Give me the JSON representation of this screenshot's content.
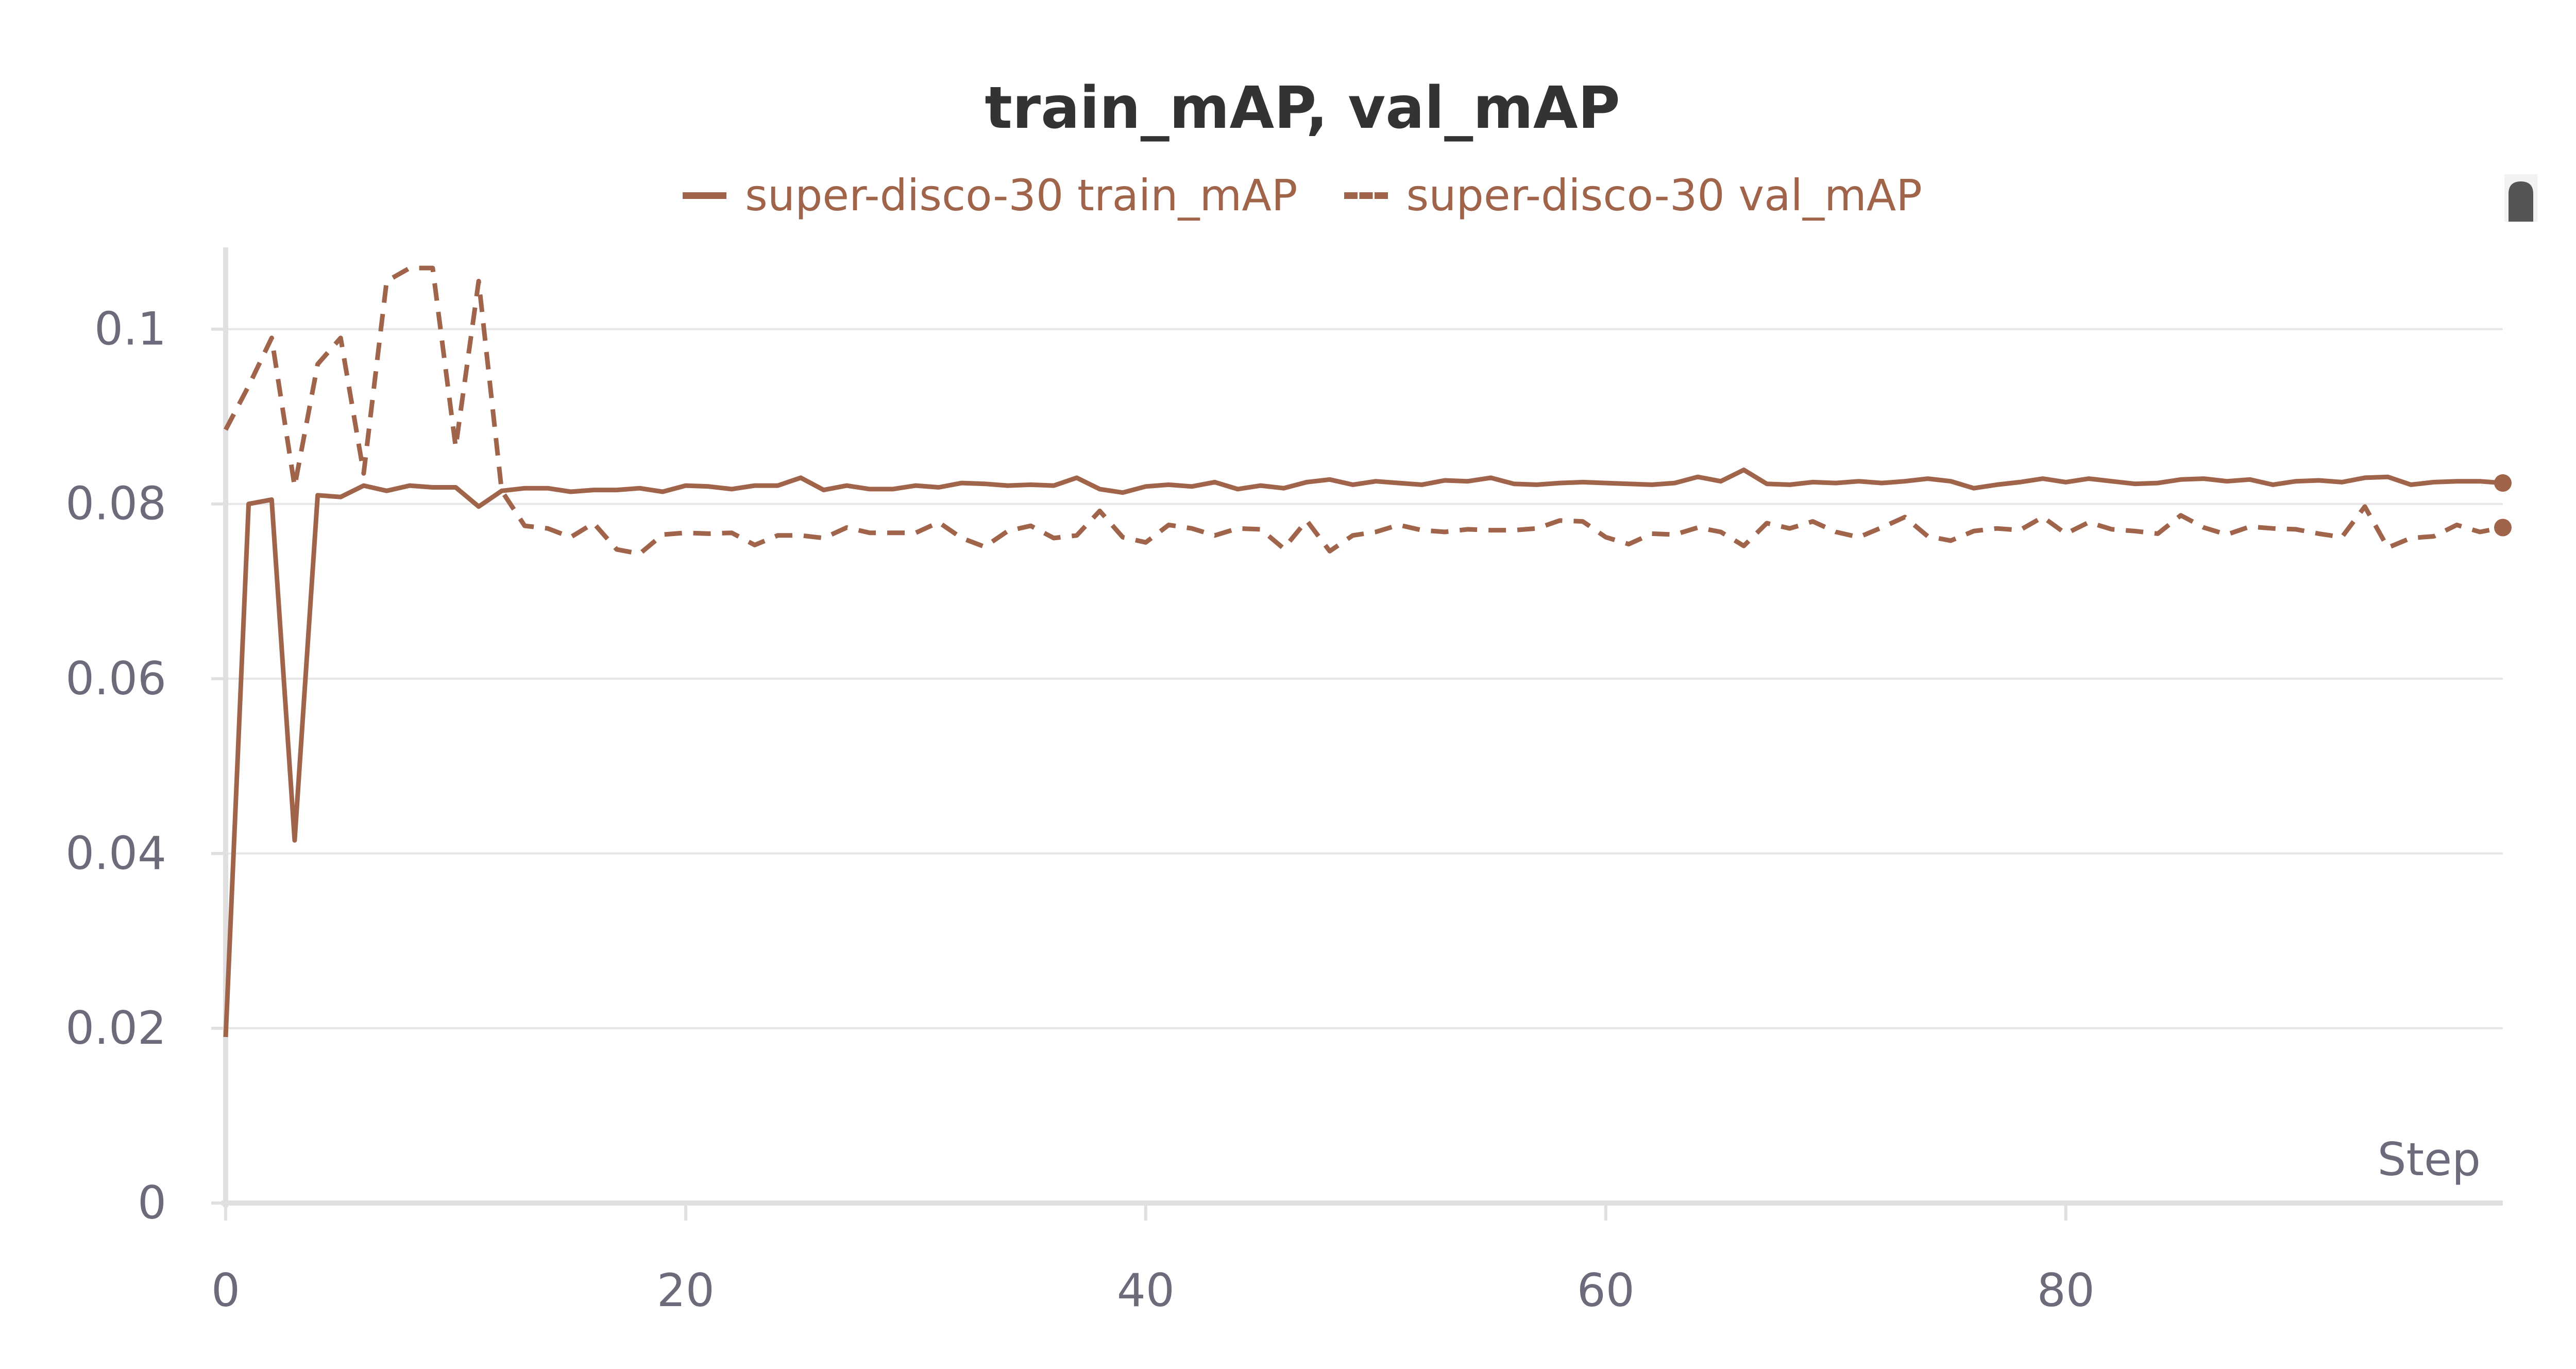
{
  "chart_data": {
    "type": "line",
    "title": "train_mAP, val_mAP",
    "xlabel": "Step",
    "ylabel": "",
    "xlim": [
      0,
      99
    ],
    "ylim": [
      0,
      0.107
    ],
    "x_ticks": [
      0,
      20,
      40,
      60,
      80
    ],
    "x_tick_labels": [
      "0",
      "20",
      "40",
      "60",
      "80"
    ],
    "y_ticks": [
      0,
      0.02,
      0.04,
      0.06,
      0.08,
      0.1
    ],
    "y_tick_labels": [
      "0",
      "0.02",
      "0.04",
      "0.06",
      "0.08",
      "0.1"
    ],
    "grid": true,
    "legend_position": "top-center",
    "color": "#a0644a",
    "series": [
      {
        "name": "super-disco-30 train_mAP",
        "style": "solid",
        "x_start": 0,
        "values": [
          0.019,
          0.08,
          0.0805,
          0.0415,
          0.081,
          0.0808,
          0.0821,
          0.0815,
          0.0821,
          0.0819,
          0.0819,
          0.0797,
          0.0815,
          0.0818,
          0.0818,
          0.0814,
          0.0816,
          0.0816,
          0.0818,
          0.0814,
          0.0821,
          0.082,
          0.0817,
          0.0821,
          0.0821,
          0.083,
          0.0816,
          0.0821,
          0.0817,
          0.0817,
          0.0821,
          0.0819,
          0.0824,
          0.0823,
          0.0821,
          0.0822,
          0.0821,
          0.083,
          0.0817,
          0.0813,
          0.082,
          0.0822,
          0.082,
          0.0825,
          0.0817,
          0.0821,
          0.0818,
          0.0825,
          0.0828,
          0.0822,
          0.0826,
          0.0824,
          0.0822,
          0.0827,
          0.0826,
          0.083,
          0.0823,
          0.0822,
          0.0824,
          0.0825,
          0.0824,
          0.0823,
          0.0822,
          0.0824,
          0.0831,
          0.0826,
          0.0839,
          0.0823,
          0.0822,
          0.0825,
          0.0824,
          0.0826,
          0.0824,
          0.0826,
          0.0829,
          0.0826,
          0.0818,
          0.0822,
          0.0825,
          0.0829,
          0.0825,
          0.0829,
          0.0826,
          0.0823,
          0.0824,
          0.0828,
          0.0829,
          0.0826,
          0.0828,
          0.0822,
          0.0826,
          0.0827,
          0.0825,
          0.083,
          0.0831,
          0.0822,
          0.0825,
          0.0826,
          0.0826,
          0.0824
        ]
      },
      {
        "name": "super-disco-30 val_mAP",
        "style": "dashed",
        "x_start": 0,
        "values": [
          0.0885,
          0.0935,
          0.099,
          0.082,
          0.096,
          0.099,
          0.0835,
          0.1055,
          0.107,
          0.107,
          0.0865,
          0.1055,
          0.0815,
          0.0775,
          0.0772,
          0.0762,
          0.0778,
          0.0748,
          0.0743,
          0.0765,
          0.0767,
          0.0766,
          0.0767,
          0.0753,
          0.0764,
          0.0764,
          0.0761,
          0.0773,
          0.0767,
          0.0767,
          0.0767,
          0.0779,
          0.0761,
          0.0751,
          0.0769,
          0.0775,
          0.0761,
          0.0764,
          0.0792,
          0.0762,
          0.0756,
          0.0776,
          0.0772,
          0.0764,
          0.0772,
          0.0771,
          0.0749,
          0.0781,
          0.0746,
          0.0764,
          0.0768,
          0.0776,
          0.077,
          0.0768,
          0.0771,
          0.077,
          0.077,
          0.0772,
          0.0781,
          0.078,
          0.0762,
          0.0754,
          0.0766,
          0.0765,
          0.0773,
          0.0768,
          0.0752,
          0.0778,
          0.0772,
          0.078,
          0.0768,
          0.0762,
          0.0773,
          0.0785,
          0.0763,
          0.0758,
          0.0769,
          0.0772,
          0.077,
          0.0785,
          0.0766,
          0.0779,
          0.0771,
          0.0769,
          0.0766,
          0.0787,
          0.0773,
          0.0765,
          0.0774,
          0.0772,
          0.0771,
          0.0766,
          0.0762,
          0.0797,
          0.075,
          0.0761,
          0.0763,
          0.0776,
          0.0768,
          0.0773
        ]
      }
    ]
  }
}
